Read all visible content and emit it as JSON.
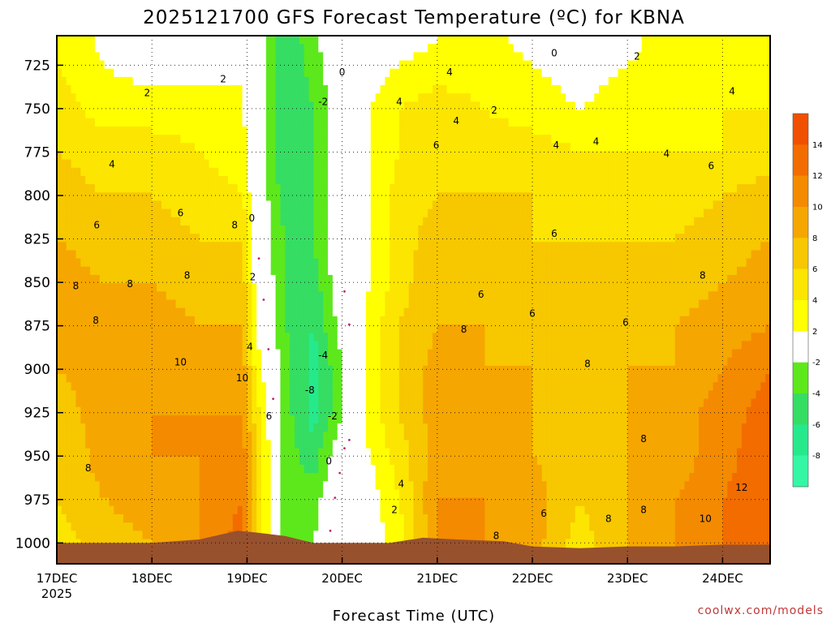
{
  "title": "2025121700 GFS Forecast Temperature (ºC) for KBNA",
  "credit": "coolwx.com/models",
  "chart_data": {
    "type": "heatmap",
    "title": "2025121700 GFS Forecast Temperature (ºC) for KBNA",
    "xlabel": "Forecast Time (UTC)",
    "ylabel": "",
    "x_ticks": [
      {
        "day": 0,
        "label": "17DEC",
        "sub": "2025"
      },
      {
        "day": 1,
        "label": "18DEC",
        "sub": ""
      },
      {
        "day": 2,
        "label": "19DEC",
        "sub": ""
      },
      {
        "day": 3,
        "label": "20DEC",
        "sub": ""
      },
      {
        "day": 4,
        "label": "21DEC",
        "sub": ""
      },
      {
        "day": 5,
        "label": "22DEC",
        "sub": ""
      },
      {
        "day": 6,
        "label": "23DEC",
        "sub": ""
      },
      {
        "day": 7,
        "label": "24DEC",
        "sub": ""
      }
    ],
    "xlim_days": [
      0,
      7.5
    ],
    "y_ticks": [
      725,
      750,
      775,
      800,
      825,
      850,
      875,
      900,
      925,
      950,
      975,
      1000
    ],
    "ylim_hpa": [
      1012,
      708
    ],
    "grid": true,
    "colorbar": {
      "labels": [
        "14",
        "12",
        "10",
        "8",
        "6",
        "4",
        "2",
        "-2",
        "-4",
        "-6",
        "-8"
      ],
      "bins": [
        {
          "min": -10,
          "max": -8,
          "color": "#33f7a4"
        },
        {
          "min": -8,
          "max": -6,
          "color": "#26e98c"
        },
        {
          "min": -6,
          "max": -4,
          "color": "#35dd63"
        },
        {
          "min": -4,
          "max": -2,
          "color": "#5de81c"
        },
        {
          "min": -2,
          "max": 2,
          "color": "#ffffff"
        },
        {
          "min": 2,
          "max": 4,
          "color": "#ffff00"
        },
        {
          "min": 4,
          "max": 6,
          "color": "#fce500"
        },
        {
          "min": 6,
          "max": 8,
          "color": "#f7c700"
        },
        {
          "min": 8,
          "max": 10,
          "color": "#f6a600"
        },
        {
          "min": 10,
          "max": 12,
          "color": "#f48a00"
        },
        {
          "min": 12,
          "max": 14,
          "color": "#f26c00"
        },
        {
          "min": 14,
          "max": 16,
          "color": "#f05000"
        }
      ]
    },
    "terrain_color": "#98512d",
    "zero_contour_color": "#c0226f",
    "temperature_fields": [
      {
        "day": 0.0,
        "t": [
          4,
          5,
          6,
          7,
          8,
          9,
          9,
          8,
          7,
          6,
          6,
          5
        ]
      },
      {
        "day": 0.5,
        "t": [
          2,
          3,
          5,
          6,
          7,
          8,
          9,
          9,
          9,
          9,
          8,
          7
        ]
      },
      {
        "day": 1.0,
        "t": [
          1,
          3,
          5,
          6,
          7,
          8,
          9,
          10,
          10,
          10,
          9,
          8
        ]
      },
      {
        "day": 1.5,
        "t": [
          1,
          3,
          4,
          5,
          6,
          7,
          8,
          9,
          10,
          10,
          10,
          10
        ]
      },
      {
        "day": 1.95,
        "t": [
          2,
          2,
          3,
          4,
          6,
          7,
          8,
          9,
          10,
          11,
          12,
          13
        ]
      },
      {
        "day": 2.1,
        "t": [
          0,
          0,
          0,
          0,
          0,
          1,
          2,
          3,
          5,
          6,
          6,
          6
        ]
      },
      {
        "day": 2.4,
        "t": [
          -6,
          -6,
          -6,
          -5,
          -4,
          -4,
          -4,
          -3,
          -3,
          -3,
          -3,
          -3
        ]
      },
      {
        "day": 2.7,
        "t": [
          -3,
          -4,
          -4,
          -4,
          -4,
          -5,
          -6,
          -7,
          -7,
          -5,
          -3,
          -2
        ]
      },
      {
        "day": 3.0,
        "t": [
          0,
          0,
          0,
          0,
          0,
          0,
          -1,
          -2,
          -2,
          0,
          1,
          2
        ]
      },
      {
        "day": 3.3,
        "t": [
          1,
          2,
          2,
          2,
          2,
          2,
          3,
          3,
          3,
          2,
          1,
          1
        ]
      },
      {
        "day": 3.6,
        "t": [
          2,
          4,
          4,
          5,
          5,
          5,
          6,
          6,
          6,
          5,
          4,
          3
        ]
      },
      {
        "day": 4.0,
        "t": [
          3,
          5,
          6,
          6,
          7,
          8,
          8,
          9,
          9,
          9,
          10,
          10
        ]
      },
      {
        "day": 4.5,
        "t": [
          3,
          4,
          5,
          6,
          7,
          7,
          8,
          8,
          9,
          9,
          10,
          10
        ]
      },
      {
        "day": 5.0,
        "t": [
          2,
          3,
          5,
          6,
          6,
          7,
          7,
          8,
          8,
          8,
          9,
          9
        ]
      },
      {
        "day": 5.5,
        "t": [
          1,
          2,
          4,
          5,
          6,
          6,
          6,
          7,
          7,
          7,
          6,
          5
        ]
      },
      {
        "day": 6.0,
        "t": [
          2,
          3,
          4,
          5,
          6,
          7,
          7,
          8,
          8,
          8,
          8,
          8
        ]
      },
      {
        "day": 6.5,
        "t": [
          3,
          3,
          4,
          5,
          6,
          7,
          8,
          8,
          9,
          9,
          10,
          10
        ]
      },
      {
        "day": 7.0,
        "t": [
          3,
          4,
          4,
          6,
          7,
          8,
          9,
          10,
          11,
          11,
          12,
          12
        ]
      },
      {
        "day": 7.5,
        "t": [
          3,
          4,
          5,
          7,
          8,
          9,
          10,
          12,
          13,
          14,
          14,
          14
        ]
      }
    ],
    "surface_pressure_hpa": [
      {
        "day": 0.0,
        "p": 1000
      },
      {
        "day": 0.5,
        "p": 1000
      },
      {
        "day": 1.0,
        "p": 1000
      },
      {
        "day": 1.5,
        "p": 998
      },
      {
        "day": 1.9,
        "p": 993
      },
      {
        "day": 2.1,
        "p": 994
      },
      {
        "day": 2.4,
        "p": 996
      },
      {
        "day": 2.7,
        "p": 1000
      },
      {
        "day": 3.0,
        "p": 1000
      },
      {
        "day": 3.5,
        "p": 1000
      },
      {
        "day": 3.85,
        "p": 997
      },
      {
        "day": 4.2,
        "p": 998
      },
      {
        "day": 4.7,
        "p": 999
      },
      {
        "day": 5.0,
        "p": 1002
      },
      {
        "day": 5.5,
        "p": 1003
      },
      {
        "day": 6.0,
        "p": 1002
      },
      {
        "day": 6.5,
        "p": 1002
      },
      {
        "day": 7.0,
        "p": 1001
      },
      {
        "day": 7.5,
        "p": 1001
      }
    ],
    "contour_labels": [
      {
        "text": "2",
        "day": 0.95,
        "p": 741
      },
      {
        "text": "2",
        "day": 1.75,
        "p": 733
      },
      {
        "text": "4",
        "day": 0.58,
        "p": 782
      },
      {
        "text": "6",
        "day": 0.42,
        "p": 817
      },
      {
        "text": "6",
        "day": 1.3,
        "p": 810
      },
      {
        "text": "8",
        "day": 1.87,
        "p": 817
      },
      {
        "text": "0",
        "day": 2.05,
        "p": 813
      },
      {
        "text": "8",
        "day": 0.2,
        "p": 852
      },
      {
        "text": "8",
        "day": 0.77,
        "p": 851
      },
      {
        "text": "8",
        "day": 1.37,
        "p": 846
      },
      {
        "text": "8",
        "day": 0.41,
        "p": 872
      },
      {
        "text": "2",
        "day": 2.06,
        "p": 847
      },
      {
        "text": "4",
        "day": 2.03,
        "p": 887
      },
      {
        "text": "10",
        "day": 1.3,
        "p": 896
      },
      {
        "text": "10",
        "day": 1.95,
        "p": 905
      },
      {
        "text": "6",
        "day": 2.23,
        "p": 927
      },
      {
        "text": "8",
        "day": 0.33,
        "p": 957
      },
      {
        "text": "0",
        "day": 3.0,
        "p": 729
      },
      {
        "text": "-2",
        "day": 2.8,
        "p": 746
      },
      {
        "text": "-4",
        "day": 2.8,
        "p": 892
      },
      {
        "text": "-8",
        "day": 2.66,
        "p": 912
      },
      {
        "text": "-2",
        "day": 2.9,
        "p": 927
      },
      {
        "text": "0",
        "day": 2.86,
        "p": 953
      },
      {
        "text": "4",
        "day": 3.6,
        "p": 746
      },
      {
        "text": "4",
        "day": 4.13,
        "p": 729
      },
      {
        "text": "4",
        "day": 4.2,
        "p": 757
      },
      {
        "text": "6",
        "day": 3.99,
        "p": 771
      },
      {
        "text": "2",
        "day": 4.6,
        "p": 751
      },
      {
        "text": "4",
        "day": 5.25,
        "p": 771
      },
      {
        "text": "4",
        "day": 5.67,
        "p": 769
      },
      {
        "text": "4",
        "day": 6.41,
        "p": 776
      },
      {
        "text": "6",
        "day": 6.88,
        "p": 783
      },
      {
        "text": "4",
        "day": 7.1,
        "p": 740
      },
      {
        "text": "0",
        "day": 5.23,
        "p": 718
      },
      {
        "text": "2",
        "day": 6.1,
        "p": 720
      },
      {
        "text": "6",
        "day": 5.23,
        "p": 822
      },
      {
        "text": "6",
        "day": 4.46,
        "p": 857
      },
      {
        "text": "6",
        "day": 5.0,
        "p": 868
      },
      {
        "text": "8",
        "day": 4.28,
        "p": 877
      },
      {
        "text": "6",
        "day": 5.98,
        "p": 873
      },
      {
        "text": "8",
        "day": 6.79,
        "p": 846
      },
      {
        "text": "8",
        "day": 5.58,
        "p": 897
      },
      {
        "text": "8",
        "day": 6.17,
        "p": 940
      },
      {
        "text": "8",
        "day": 6.17,
        "p": 981
      },
      {
        "text": "8",
        "day": 5.8,
        "p": 986
      },
      {
        "text": "6",
        "day": 5.12,
        "p": 983
      },
      {
        "text": "8",
        "day": 4.62,
        "p": 996
      },
      {
        "text": "4",
        "day": 3.62,
        "p": 966
      },
      {
        "text": "2",
        "day": 3.55,
        "p": 981
      },
      {
        "text": "10",
        "day": 6.82,
        "p": 986
      },
      {
        "text": "12",
        "day": 7.2,
        "p": 968
      }
    ]
  }
}
